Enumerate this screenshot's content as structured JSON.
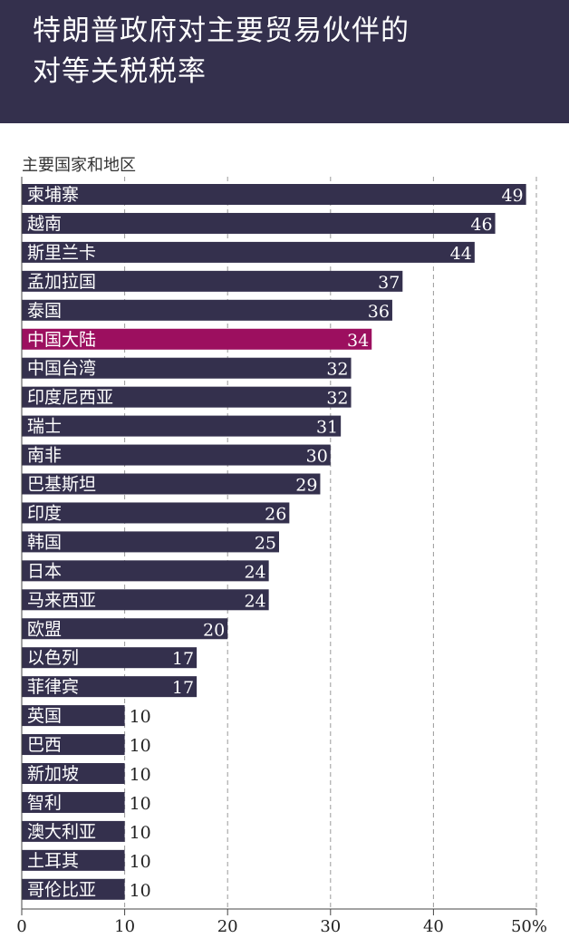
{
  "header": {
    "title_line1": "特朗普政府对主要贸易伙伴的",
    "title_line2": "对等关税税率"
  },
  "colors": {
    "header_bg": "#34304d",
    "bar": "#34304d",
    "highlight": "#9c0f5f"
  },
  "chart_data": {
    "type": "bar",
    "orientation": "horizontal",
    "title": "特朗普政府对主要贸易伙伴的对等关税税率",
    "ylabel": "主要国家和地区",
    "xlabel": "",
    "categories": [
      "柬埔寨",
      "越南",
      "斯里兰卡",
      "孟加拉国",
      "泰国",
      "中国大陆",
      "中国台湾",
      "印度尼西亚",
      "瑞士",
      "南非",
      "巴基斯坦",
      "印度",
      "韩国",
      "日本",
      "马来西亚",
      "欧盟",
      "以色列",
      "菲律宾",
      "英国",
      "巴西",
      "新加坡",
      "智利",
      "澳大利亚",
      "土耳其",
      "哥伦比亚"
    ],
    "values": [
      49,
      46,
      44,
      37,
      36,
      34,
      32,
      32,
      31,
      30,
      29,
      26,
      25,
      24,
      24,
      20,
      17,
      17,
      10,
      10,
      10,
      10,
      10,
      10,
      10
    ],
    "highlight_category": "中国大陆",
    "xlim": [
      0,
      50
    ],
    "x_ticks": [
      "0",
      "10",
      "20",
      "30",
      "40",
      "50%"
    ],
    "grid": "vertical-dashed"
  }
}
